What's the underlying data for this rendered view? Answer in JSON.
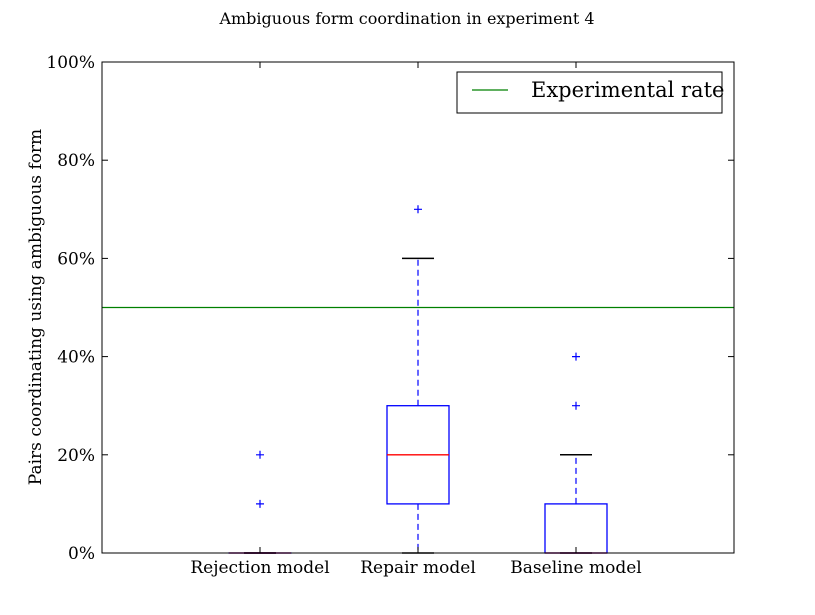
{
  "chart_data": {
    "type": "box",
    "title": "Ambiguous form coordination in experiment 4",
    "xlabel": "",
    "ylabel": "Pairs coordinating using ambiguous form",
    "ylim": [
      0,
      100
    ],
    "yticks": [
      0,
      20,
      40,
      60,
      80,
      100
    ],
    "ytick_labels": [
      "0%",
      "20%",
      "40%",
      "60%",
      "80%",
      "100%"
    ],
    "grid": false,
    "legend_position": "top-right",
    "categories": [
      "Rejection model",
      "Repair model",
      "Baseline model"
    ],
    "boxes": [
      {
        "category": "Rejection model",
        "q1": 0,
        "median": 0,
        "q3": 0,
        "whisker_low": 0,
        "whisker_high": 0,
        "outliers": [
          10,
          20
        ]
      },
      {
        "category": "Repair model",
        "q1": 10,
        "median": 20,
        "q3": 30,
        "whisker_low": 0,
        "whisker_high": 60,
        "outliers": [
          70
        ]
      },
      {
        "category": "Baseline model",
        "q1": 0,
        "median": 0,
        "q3": 10,
        "whisker_low": 0,
        "whisker_high": 20,
        "outliers": [
          30,
          40
        ]
      }
    ],
    "reference_line": {
      "label": "Experimental rate",
      "value": 50,
      "color": "#008000"
    },
    "colors": {
      "box": "#0000ff",
      "median": "#ff0000",
      "cap": "#000000",
      "outlier": "#0000ff"
    }
  }
}
